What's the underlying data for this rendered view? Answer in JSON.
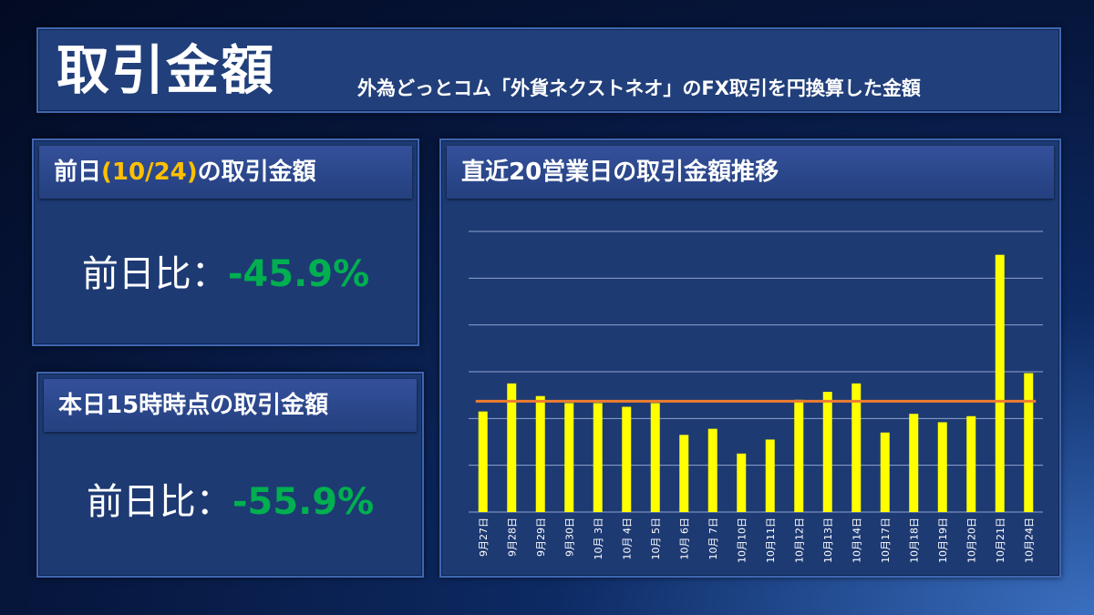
{
  "header": {
    "title": "取引金額",
    "subtitle": "外為どっとコム「外貨ネクストネオ」のFX取引を円換算した金額"
  },
  "prev_panel": {
    "heading_pre": "前日",
    "heading_date": "(10/24)",
    "heading_post": "の取引金額",
    "label": "前日比：",
    "value": "-45.9%"
  },
  "today_panel": {
    "heading": "本日15時時点の取引金額",
    "label": "前日比：",
    "value": "-55.9%"
  },
  "chart_panel": {
    "heading": "直近20営業日の取引金額推移"
  },
  "colors": {
    "bar": "#ffff00",
    "average_line": "#ed7d31",
    "positive_value": "#00b050",
    "date_accent": "#ffc000"
  },
  "chart_data": {
    "type": "bar",
    "title": "",
    "xlabel": "",
    "ylabel": "",
    "ylim": [
      0,
      6
    ],
    "grid": true,
    "categories": [
      "9月27日",
      "9月28日",
      "9月29日",
      "9月30日",
      "10月 3日",
      "10月 4日",
      "10月 5日",
      "10月 6日",
      "10月 7日",
      "10月10日",
      "10月11日",
      "10月12日",
      "10月13日",
      "10月14日",
      "10月17日",
      "10月18日",
      "10月19日",
      "10月20日",
      "10月21日",
      "10月24日"
    ],
    "series": [
      {
        "values": [
          2.15,
          2.75,
          2.48,
          2.33,
          2.33,
          2.25,
          2.33,
          1.65,
          1.78,
          1.25,
          1.55,
          2.4,
          2.57,
          2.75,
          1.7,
          2.1,
          1.92,
          2.05,
          5.5,
          2.97
        ]
      }
    ],
    "average_line": 2.37
  }
}
